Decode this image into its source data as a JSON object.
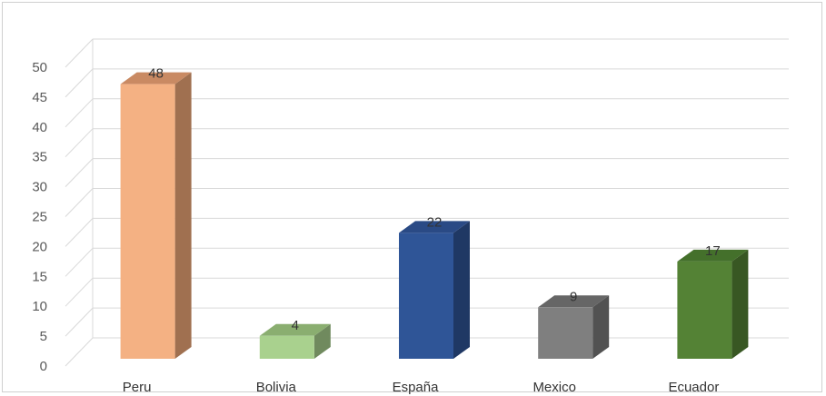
{
  "chart_data": {
    "type": "bar",
    "style": "3d-column",
    "categories": [
      "Peru",
      "Bolivia",
      "España",
      "Mexico",
      "Ecuador"
    ],
    "values": [
      48,
      4,
      22,
      9,
      17
    ],
    "data_labels": [
      "48",
      "4",
      "22",
      "9",
      "17"
    ],
    "colors": [
      "#f4b183",
      "#a9d18e",
      "#2f5597",
      "#7f7f7f",
      "#548235"
    ],
    "side_colors": [
      "#a07050",
      "#708a5e",
      "#1f3864",
      "#525252",
      "#385723"
    ],
    "top_colors": [
      "#c98a63",
      "#8aae70",
      "#2a4a85",
      "#666666",
      "#44702b"
    ],
    "yticks": [
      "0",
      "5",
      "10",
      "15",
      "20",
      "25",
      "30",
      "35",
      "40",
      "45",
      "50"
    ],
    "ylim": [
      0,
      50
    ],
    "grid": true,
    "legend": "none",
    "title": "",
    "xlabel": "",
    "ylabel": ""
  }
}
